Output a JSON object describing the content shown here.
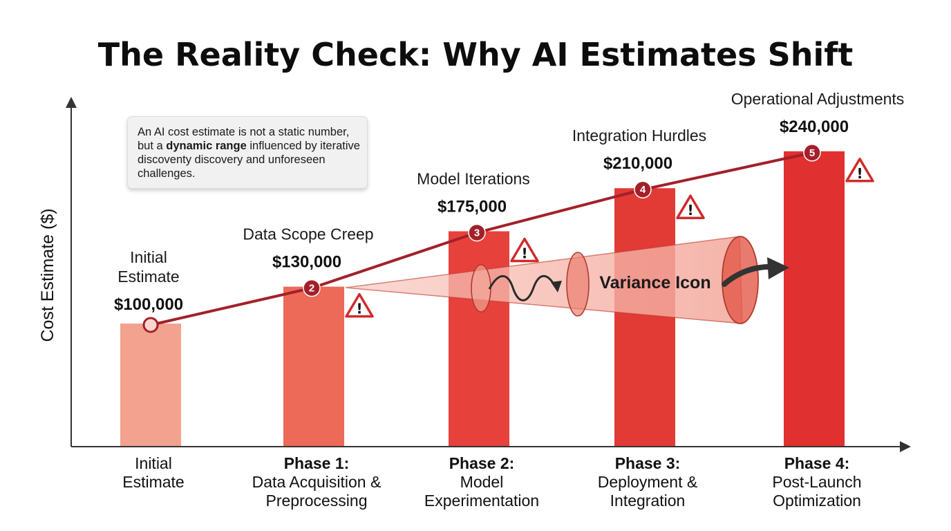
{
  "chart_data": {
    "type": "bar",
    "title": "The Reality Check: Why AI Estimates Shift",
    "ylabel": "Cost Estimate ($)",
    "xlabel": "",
    "ylim": [
      0,
      240000
    ],
    "grid": false,
    "categories": [
      {
        "bold": "",
        "lines": [
          "Initial",
          "Estimate"
        ]
      },
      {
        "bold": "Phase 1:",
        "lines": [
          "Data Acquisition &",
          "Preprocessing"
        ]
      },
      {
        "bold": "Phase 2:",
        "lines": [
          "Model",
          "Experimentation"
        ]
      },
      {
        "bold": "Phase 3:",
        "lines": [
          "Deployment &",
          "Integration"
        ]
      },
      {
        "bold": "Phase 4:",
        "lines": [
          "Post-Launch",
          "Optimization"
        ]
      }
    ],
    "values": [
      100000,
      130000,
      175000,
      210000,
      240000
    ],
    "point_labels": [
      [
        "Initial",
        "Estimate"
      ],
      [
        "Data Scope Creep"
      ],
      [
        "Model Iterations"
      ],
      [
        "Integration Hurdles"
      ],
      [
        "Operational Adjustments"
      ]
    ],
    "value_labels": [
      "$100,000",
      "$130,000",
      "$175,000",
      "$210,000",
      "$240,000"
    ],
    "markers": [
      "",
      "2",
      "3",
      "4",
      "5"
    ],
    "bar_colors": [
      "#f2a28e",
      "#ec6a57",
      "#e6423b",
      "#e23a35",
      "#e0302f"
    ],
    "line_color": "#a3202a",
    "warning_icons": [
      "warning-icon",
      "warning-icon",
      "warning-icon",
      "warning-icon"
    ],
    "annotation": {
      "text": "Variance Icon",
      "icon": "variance-cone-icon"
    }
  },
  "note": {
    "before": "An AI cost estimate is not a static number, but a ",
    "bold": "dynamic range",
    "after": " influenced by iterative discoventy discovery and unforeseen challenges."
  },
  "warning_glyph": "!"
}
